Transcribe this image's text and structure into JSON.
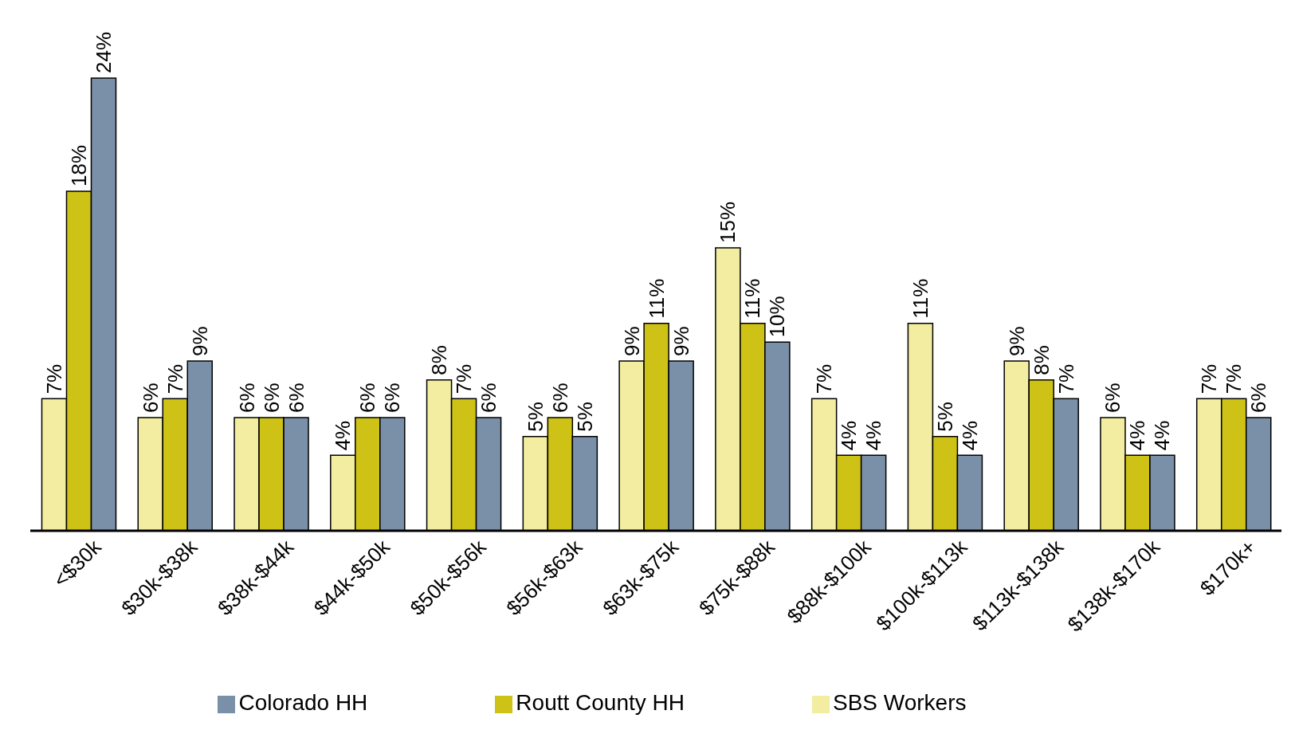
{
  "chart_data": {
    "type": "bar",
    "categories": [
      "<$30k",
      "$30k-$38k",
      "$38k-$44k",
      "$44k-$50k",
      "$50k-$56k",
      "$56k-$63k",
      "$63k-$75k",
      "$75k-$88k",
      "$88k-$100k",
      "$100k-$113k",
      "$113k-$138k",
      "$138k-$170k",
      "$170k+"
    ],
    "series": [
      {
        "name": "SBS Workers",
        "color": "#f2eda0",
        "values": [
          7,
          6,
          6,
          4,
          8,
          5,
          9,
          15,
          7,
          11,
          9,
          6,
          7
        ],
        "value_labels": [
          "7%",
          "6%",
          "6%",
          "4%",
          "8%",
          "5%",
          "9%",
          "15%",
          "7%",
          "11%",
          "9%",
          "6%",
          "7%"
        ]
      },
      {
        "name": "Routt County HH",
        "color": "#cec216",
        "values": [
          18,
          7,
          6,
          6,
          7,
          6,
          11,
          11,
          4,
          5,
          8,
          4,
          7
        ],
        "value_labels": [
          "18%",
          "7%",
          "6%",
          "6%",
          "7%",
          "6%",
          "11%",
          "11%",
          "4%",
          "5%",
          "8%",
          "4%",
          "7%"
        ]
      },
      {
        "name": "Colorado HH",
        "color": "#7a90a8",
        "values": [
          24,
          9,
          6,
          6,
          6,
          5,
          9,
          10,
          4,
          4,
          7,
          4,
          6
        ],
        "value_labels": [
          "24%",
          "9%",
          "6%",
          "6%",
          "6%",
          "5%",
          "9%",
          "10%",
          "4%",
          "4%",
          "7%",
          "4%",
          "6%"
        ]
      }
    ],
    "legend": "bottom",
    "grid": false,
    "tick_labels": "x"
  }
}
